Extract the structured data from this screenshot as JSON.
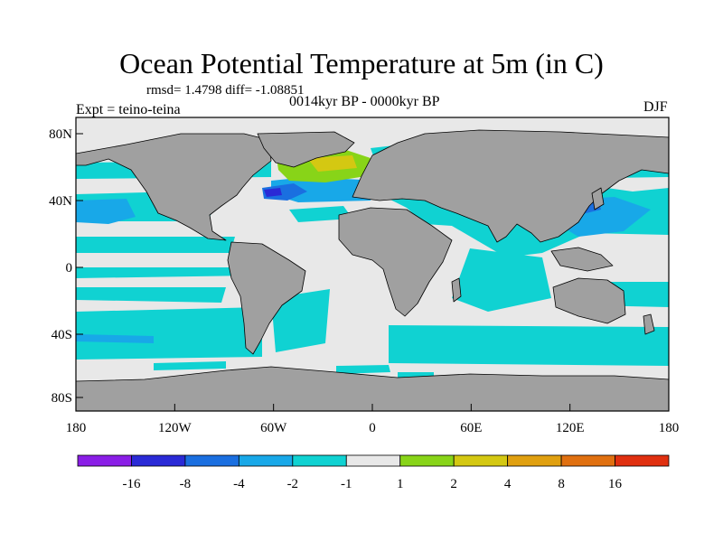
{
  "figure": {
    "title": "Ocean Potential Temperature at 5m (in C)",
    "stats": "rmsd= 1.4798 diff= -1.08851",
    "period": "0014kyr BP - 0000kyr BP",
    "experiment": "Expt = teino-teina",
    "season": "DJF"
  },
  "axes": {
    "x_ticks": [
      "180",
      "120W",
      "60W",
      "0",
      "60E",
      "120E",
      "180"
    ],
    "y_ticks": [
      "80N",
      "40N",
      "0",
      "40S",
      "80S"
    ]
  },
  "colorbar": {
    "labels": [
      "-16",
      "-8",
      "-4",
      "-2",
      "-1",
      "1",
      "2",
      "4",
      "8",
      "16"
    ],
    "colors": [
      "#8a1ee6",
      "#2a2ad6",
      "#1a6fe0",
      "#18a8e8",
      "#10d2d2",
      "#e8e8e8",
      "#88d418",
      "#d4c812",
      "#e0a010",
      "#e07010",
      "#e03010"
    ]
  },
  "palette": {
    "land": "#a0a0a0",
    "neutral_ocean": "#e8e8e8"
  }
}
